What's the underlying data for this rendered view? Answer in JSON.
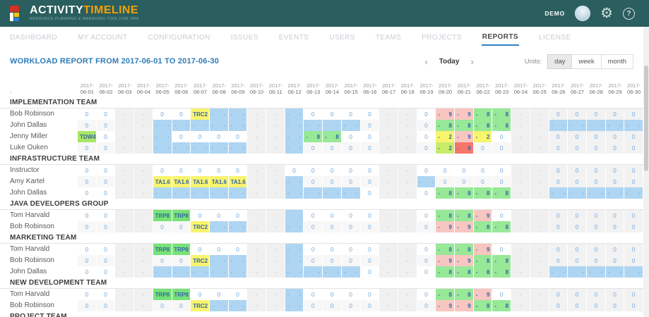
{
  "header": {
    "brand_activity": "ACTIVITY",
    "brand_timeline": "TIMELINE",
    "brand_subtitle": "RESOURCE PLANNING & MANAGING TOOL FOR JIRA",
    "user_label": "DEMO",
    "help_glyph": "?",
    "gear_glyph": "⚙"
  },
  "nav": {
    "items": [
      {
        "label": "DASHBOARD",
        "active": false
      },
      {
        "label": "MY ACCOUNT",
        "active": false
      },
      {
        "label": "CONFIGURATION",
        "active": false
      },
      {
        "label": "ISSUES",
        "active": false
      },
      {
        "label": "EVENTS",
        "active": false
      },
      {
        "label": "USERS",
        "active": false
      },
      {
        "label": "TEAMS",
        "active": false
      },
      {
        "label": "PROJECTS",
        "active": false
      },
      {
        "label": "REPORTS",
        "active": true
      },
      {
        "label": "LICENSE",
        "active": false
      }
    ]
  },
  "toolbar": {
    "title": "WORKLOAD REPORT FROM 2017-06-01 TO 2017-06-30",
    "prev_glyph": "‹",
    "today_label": "Today",
    "next_glyph": "›",
    "units_label": "Units:",
    "units": [
      {
        "label": "day",
        "active": true
      },
      {
        "label": "week",
        "active": false
      },
      {
        "label": "month",
        "active": false
      }
    ]
  },
  "table": {
    "corner": ".",
    "columns": [
      {
        "y": "2017-",
        "d": "06-01"
      },
      {
        "y": "2017-",
        "d": "06-02"
      },
      {
        "y": "2017-",
        "d": "06-03"
      },
      {
        "y": "2017-",
        "d": "06-04"
      },
      {
        "y": "2017-",
        "d": "06-05"
      },
      {
        "y": "2017-",
        "d": "06-06"
      },
      {
        "y": "2017-",
        "d": "06-07"
      },
      {
        "y": "2017-",
        "d": "06-08"
      },
      {
        "y": "2017-",
        "d": "06-09"
      },
      {
        "y": "2017-",
        "d": "06-10"
      },
      {
        "y": "2017-",
        "d": "06-11"
      },
      {
        "y": "2017-",
        "d": "06-12"
      },
      {
        "y": "2017-",
        "d": "06-13"
      },
      {
        "y": "2017-",
        "d": "06-14"
      },
      {
        "y": "2017-",
        "d": "06-15"
      },
      {
        "y": "2017-",
        "d": "06-16"
      },
      {
        "y": "2017-",
        "d": "06-17"
      },
      {
        "y": "2017-",
        "d": "06-18"
      },
      {
        "y": "2017-",
        "d": "06-19"
      },
      {
        "y": "2017-",
        "d": "06-20"
      },
      {
        "y": "2017-",
        "d": "06-21"
      },
      {
        "y": "2017-",
        "d": "06-22"
      },
      {
        "y": "2017-",
        "d": "06-23"
      },
      {
        "y": "2017-",
        "d": "06-24"
      },
      {
        "y": "2017-",
        "d": "06-25"
      },
      {
        "y": "2017-",
        "d": "06-26"
      },
      {
        "y": "2017-",
        "d": "06-27"
      },
      {
        "y": "2017-",
        "d": "06-28"
      },
      {
        "y": "2017-",
        "d": "06-29"
      },
      {
        "y": "2017-",
        "d": "06-30"
      }
    ],
    "sections": [
      {
        "name": "IMPLEMENTATION TEAM",
        "rows": [
          {
            "name": "Bob Robinson",
            "cells": [
              "w:0",
              "w:0",
              "we:-",
              "we:-",
              "w:0",
              "w:0",
              "ye:TRC 2",
              "bl:- -",
              "bl:- -",
              "we:-",
              "we:-",
              "bl:- -",
              "w:0",
              "w:0",
              "w:0",
              "w:0",
              "we:-",
              "we:-",
              "w:0",
              "pi:- 9",
              "pi:- 9",
              "gr:- 8",
              "gr:- 8",
              "we:-",
              "we:-",
              "gw:0",
              "gw:0",
              "gw:0",
              "gw:0",
              "gw:0"
            ]
          },
          {
            "name": "John Dallas",
            "cells": [
              "w:0",
              "w:0",
              "we:-",
              "we:-",
              "bl:- -",
              "bl:- -",
              "bl:- -",
              "bl:- -",
              "bl:- -",
              "we:-",
              "we:-",
              "bl:- -",
              "bl:- -",
              "bl:- -",
              "bl:- -",
              "w:0",
              "we:-",
              "we:-",
              "w:0",
              "gr:- 8",
              "gr:- 8",
              "gr:- 8",
              "gr:- 8",
              "we:-",
              "we:-",
              "bl:- -",
              "bl:- -",
              "bl:- -",
              "bl:- -",
              "bl:- -"
            ]
          },
          {
            "name": "Jenny Miller",
            "cells": [
              "lm:TDW 4",
              "w:0",
              "we:-",
              "we:-",
              "bl:- -",
              "w:0",
              "w:0",
              "w:0",
              "w:0",
              "we:-",
              "we:-",
              "bl:- -",
              "gr:- 8",
              "gr:- 8",
              "w:0",
              "w:0",
              "we:-",
              "we:-",
              "w:0",
              "ye:- 2",
              "pi:- 9",
              "ye:- 2",
              "w:0",
              "we:-",
              "we:-",
              "gw:0",
              "gw:0",
              "gw:0",
              "gw:0",
              "gw:0"
            ]
          },
          {
            "name": "Luke Ouken",
            "cells": [
              "w:0",
              "w:0",
              "we:-",
              "we:-",
              "bl:- -",
              "bl:- -",
              "bl:- -",
              "bl:- -",
              "bl:- -",
              "we:-",
              "we:-",
              "bl:- -",
              "w:0",
              "w:0",
              "w:0",
              "w:0",
              "we:-",
              "we:-",
              "w:0",
              "li:- 2",
              "re:- 9",
              "w:0",
              "w:0",
              "we:-",
              "we:-",
              "gw:0",
              "gw:0",
              "gw:0",
              "gw:0",
              "gw:0"
            ]
          }
        ]
      },
      {
        "name": "INFRASTRUCTURE TEAM",
        "rows": [
          {
            "name": "Instructor",
            "cells": [
              "w:0",
              "w:0",
              "we:-",
              "we:-",
              "w:0",
              "w:0",
              "w:0",
              "w:0",
              "w:0",
              "we:-",
              "we:-",
              "w:0",
              "w:0",
              "w:0",
              "w:0",
              "w:0",
              "we:-",
              "we:-",
              "w:0",
              "w:0",
              "w:0",
              "w:0",
              "w:0",
              "we:-",
              "we:-",
              "gw:0",
              "gw:0",
              "gw:0",
              "gw:0",
              "gw:0"
            ]
          },
          {
            "name": "Amy Kartel",
            "cells": [
              "w:0",
              "w:0",
              "we:-",
              "we:-",
              "ye:TA 1.6",
              "ye:TA 1.6",
              "ye:TA 1.6",
              "ye:TA 1.6",
              "ye:TA 1.6",
              "we:-",
              "we:-",
              "bl:- -",
              "w:0",
              "w:0",
              "w:0",
              "w:0",
              "we:-",
              "we:-",
              "bl:- -",
              "w:0",
              "w:0",
              "w:0",
              "w:0",
              "we:-",
              "we:-",
              "gw:0",
              "gw:0",
              "gw:0",
              "gw:0",
              "gw:0"
            ]
          },
          {
            "name": "John Dallas",
            "cells": [
              "w:0",
              "w:0",
              "we:-",
              "we:-",
              "bl:- -",
              "bl:- -",
              "bl:- -",
              "bl:- -",
              "bl:- -",
              "we:-",
              "we:-",
              "bl:- -",
              "bl:- -",
              "bl:- -",
              "bl:- -",
              "w:0",
              "we:-",
              "we:-",
              "w:0",
              "gr:- 8",
              "gr:- 8",
              "gr:- 8",
              "gr:- 8",
              "we:-",
              "we:-",
              "bl:- -",
              "bl:- -",
              "bl:- -",
              "bl:- -",
              "bl:- -"
            ]
          }
        ]
      },
      {
        "name": "JAVA DEVELOPERS GROUP",
        "rows": [
          {
            "name": "Tom Harvald",
            "cells": [
              "w:0",
              "w:0",
              "we:-",
              "we:-",
              "gb:TRP 8",
              "gb:TRP 8",
              "w:0",
              "w:0",
              "w:0",
              "we:-",
              "we:-",
              "bl:- -",
              "w:0",
              "w:0",
              "w:0",
              "w:0",
              "we:-",
              "we:-",
              "w:0",
              "gr:- 8",
              "gr:- 8",
              "pi:- 9",
              "w:0",
              "we:-",
              "we:-",
              "gw:0",
              "gw:0",
              "gw:0",
              "gw:0",
              "gw:0"
            ]
          },
          {
            "name": "Bob Robinson",
            "cells": [
              "w:0",
              "w:0",
              "we:-",
              "we:-",
              "w:0",
              "w:0",
              "ye:TRC 2",
              "bl:- -",
              "bl:- -",
              "we:-",
              "we:-",
              "bl:- -",
              "w:0",
              "w:0",
              "w:0",
              "w:0",
              "we:-",
              "we:-",
              "w:0",
              "pi:- 9",
              "pi:- 9",
              "gr:- 8",
              "gr:- 8",
              "we:-",
              "we:-",
              "gw:0",
              "gw:0",
              "gw:0",
              "gw:0",
              "gw:0"
            ]
          }
        ]
      },
      {
        "name": "MARKETING TEAM",
        "rows": [
          {
            "name": "Tom Harvald",
            "cells": [
              "w:0",
              "w:0",
              "we:-",
              "we:-",
              "gb:TRP 8",
              "gb:TRP 8",
              "w:0",
              "w:0",
              "w:0",
              "we:-",
              "we:-",
              "bl:- -",
              "w:0",
              "w:0",
              "w:0",
              "w:0",
              "we:-",
              "we:-",
              "w:0",
              "gr:- 8",
              "gr:- 8",
              "pi:- 9",
              "w:0",
              "we:-",
              "we:-",
              "gw:0",
              "gw:0",
              "gw:0",
              "gw:0",
              "gw:0"
            ]
          },
          {
            "name": "Bob Robinson",
            "cells": [
              "w:0",
              "w:0",
              "we:-",
              "we:-",
              "w:0",
              "w:0",
              "ye:TRC 2",
              "bl:- -",
              "bl:- -",
              "we:-",
              "we:-",
              "bl:- -",
              "w:0",
              "w:0",
              "w:0",
              "w:0",
              "we:-",
              "we:-",
              "w:0",
              "pi:- 9",
              "pi:- 9",
              "gr:- 8",
              "gr:- 8",
              "we:-",
              "we:-",
              "gw:0",
              "gw:0",
              "gw:0",
              "gw:0",
              "gw:0"
            ]
          },
          {
            "name": "John Dallas",
            "cells": [
              "w:0",
              "w:0",
              "we:-",
              "we:-",
              "bl:- -",
              "bl:- -",
              "bl:- -",
              "bl:- -",
              "bl:- -",
              "we:-",
              "we:-",
              "bl:- -",
              "bl:- -",
              "bl:- -",
              "bl:- -",
              "w:0",
              "we:-",
              "we:-",
              "w:0",
              "gr:- 8",
              "gr:- 8",
              "gr:- 8",
              "gr:- 8",
              "we:-",
              "we:-",
              "bl:- -",
              "bl:- -",
              "bl:- -",
              "bl:- -",
              "bl:- -"
            ]
          }
        ]
      },
      {
        "name": "NEW DEVELOPMENT TEAM",
        "rows": [
          {
            "name": "Tom Harvald",
            "cells": [
              "w:0",
              "w:0",
              "we:-",
              "we:-",
              "gb:TRP 8",
              "gb:TRP 8",
              "w:0",
              "w:0",
              "w:0",
              "we:-",
              "we:-",
              "bl:- -",
              "w:0",
              "w:0",
              "w:0",
              "w:0",
              "we:-",
              "we:-",
              "w:0",
              "gr:- 8",
              "gr:- 8",
              "pi:- 9",
              "w:0",
              "we:-",
              "we:-",
              "gw:0",
              "gw:0",
              "gw:0",
              "gw:0",
              "gw:0"
            ]
          },
          {
            "name": "Bob Robinson",
            "cells": [
              "w:0",
              "w:0",
              "we:-",
              "we:-",
              "w:0",
              "w:0",
              "ye:TRC 2",
              "bl:- -",
              "bl:- -",
              "we:-",
              "we:-",
              "bl:- -",
              "w:0",
              "w:0",
              "w:0",
              "w:0",
              "we:-",
              "we:-",
              "w:0",
              "pi:- 9",
              "pi:- 9",
              "gr:- 8",
              "gr:- 8",
              "we:-",
              "we:-",
              "gw:0",
              "gw:0",
              "gw:0",
              "gw:0",
              "gw:0"
            ]
          }
        ]
      },
      {
        "name": "PROJECT TEAM",
        "rows": []
      }
    ]
  },
  "palette": {
    "header_bg": "#2b5e5e",
    "brand_orange": "#f2a104",
    "nav_active_underline": "#2d7fc1",
    "title_blue": "#2e7cb8",
    "row_stripe": "#f7f7f7",
    "cell_types": {
      "w": {
        "bg": "",
        "fg": "#74a9dc"
      },
      "gw": {
        "bg": "#f2f2f2",
        "fg": "#74a9dc"
      },
      "we": {
        "bg": "#f0f0f0",
        "fg": "#bcbcbc"
      },
      "bl": {
        "bg": "#aed5f2",
        "fg": "#6d9fce"
      },
      "ye": {
        "bg": "#f8f46e",
        "fg": "#3565a8"
      },
      "gr": {
        "bg": "#97e897",
        "fg": "#3565a8"
      },
      "gb": {
        "bg": "#77e377",
        "fg": "#3565a8"
      },
      "lm": {
        "bg": "#abe566",
        "fg": "#3565a8"
      },
      "li": {
        "bg": "#c8ec6a",
        "fg": "#3565a8"
      },
      "pi": {
        "bg": "#f8c6c1",
        "fg": "#3565a8"
      },
      "re": {
        "bg": "#f5766b",
        "fg": "#3565a8"
      }
    }
  }
}
